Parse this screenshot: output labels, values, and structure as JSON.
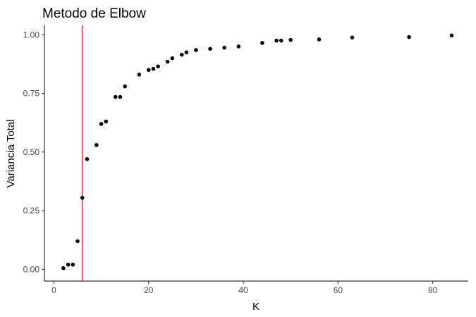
{
  "chart_data": {
    "type": "scatter",
    "title": "Metodo de Elbow",
    "xlabel": "K",
    "ylabel": "Variancia Total",
    "xlim": [
      -2,
      87.5
    ],
    "ylim": [
      -0.05,
      1.04
    ],
    "xticks": [
      0,
      20,
      40,
      60,
      80
    ],
    "xtick_labels": [
      "0",
      "20",
      "40",
      "60",
      "80"
    ],
    "yticks": [
      0.0,
      0.25,
      0.5,
      0.75,
      1.0
    ],
    "ytick_labels": [
      "0.00",
      "0.25",
      "0.50",
      "0.75",
      "1.00"
    ],
    "grid": false,
    "legend": "none",
    "vline": {
      "x": 6,
      "color": "#cc0000"
    },
    "point_color": "#000000",
    "x": [
      2,
      3,
      4,
      5,
      6,
      7,
      9,
      10,
      11,
      13,
      14,
      15,
      18,
      20,
      21,
      22,
      24,
      25,
      27,
      28,
      30,
      33,
      36,
      39,
      44,
      47,
      48,
      50,
      56,
      63,
      75,
      84
    ],
    "y": [
      0.005,
      0.02,
      0.02,
      0.12,
      0.305,
      0.47,
      0.53,
      0.62,
      0.63,
      0.735,
      0.735,
      0.78,
      0.83,
      0.85,
      0.855,
      0.865,
      0.885,
      0.9,
      0.915,
      0.925,
      0.935,
      0.94,
      0.945,
      0.95,
      0.965,
      0.975,
      0.975,
      0.978,
      0.98,
      0.988,
      0.99,
      0.997
    ]
  }
}
